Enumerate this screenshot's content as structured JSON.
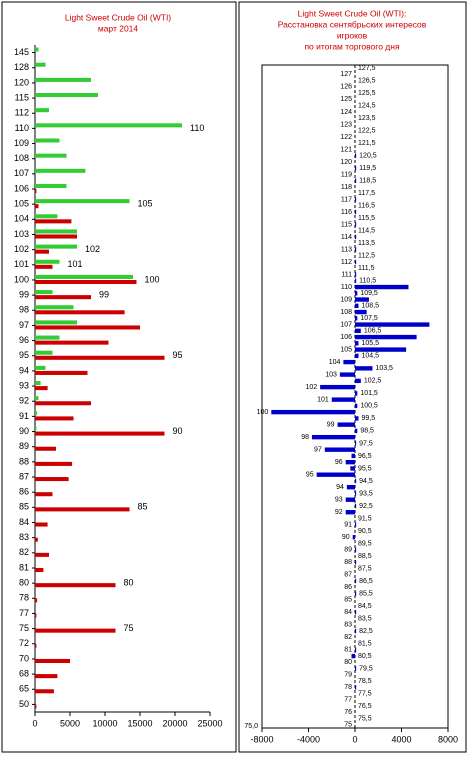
{
  "chart_data": [
    {
      "type": "hbar",
      "title": [
        "Light Sweet Crude Oil (WTI)",
        "март 2014"
      ],
      "categories": [
        145,
        128,
        120,
        115,
        112,
        110,
        109,
        108,
        107,
        106,
        105,
        104,
        103,
        102,
        101,
        100,
        99,
        98,
        97,
        96,
        95,
        94,
        93,
        92,
        91,
        90,
        89,
        88,
        87,
        86,
        85,
        84,
        83,
        82,
        81,
        80,
        78,
        77,
        75,
        72,
        70,
        68,
        65,
        50
      ],
      "series": [
        {
          "color": "#33cc33",
          "values": [
            500,
            1500,
            8000,
            9000,
            2000,
            21000,
            3500,
            4500,
            7200,
            4500,
            13500,
            3200,
            6000,
            6000,
            3500,
            14000,
            2500,
            5500,
            6000,
            3500,
            2500,
            1500,
            800,
            500,
            300,
            200,
            0,
            0,
            0,
            0,
            0,
            0,
            0,
            0,
            0,
            0,
            0,
            0,
            0,
            0,
            0,
            0,
            0,
            0
          ]
        },
        {
          "color": "#cc0000",
          "values": [
            0,
            0,
            0,
            0,
            0,
            0,
            0,
            0,
            0,
            200,
            500,
            5200,
            6000,
            2000,
            2500,
            14500,
            8000,
            12800,
            15000,
            10500,
            18500,
            7500,
            1800,
            8000,
            5500,
            18500,
            3000,
            5300,
            4800,
            2500,
            13500,
            1800,
            400,
            2000,
            1200,
            11500,
            300,
            200,
            11500,
            200,
            5000,
            3200,
            2700,
            200
          ]
        }
      ],
      "annotations": [
        "110",
        "105",
        "102",
        "101",
        "100",
        "99",
        "95",
        "90",
        "85",
        "80",
        "75"
      ],
      "xlim": [
        0,
        25000
      ],
      "xticks": [
        0,
        5000,
        10000,
        15000,
        20000,
        25000
      ]
    },
    {
      "type": "hbar",
      "title": [
        "Light Sweet Crude Oil (WTI):",
        "Расстановка  сентябрьских интересов",
        "игроков",
        "по итогам торгового  дня"
      ],
      "categories": [
        "127,5",
        "127",
        "126,5",
        "126",
        "125,5",
        "125",
        "124,5",
        "124",
        "123,5",
        "123",
        "122,5",
        "122",
        "121,5",
        "121",
        "120,5",
        "120",
        "119,5",
        "119",
        "118,5",
        "118",
        "117,5",
        "117",
        "116,5",
        "116",
        "115,5",
        "115",
        "114,5",
        "114",
        "113,5",
        "113",
        "112,5",
        "112",
        "111,5",
        "111",
        "110,5",
        "110",
        "109,5",
        "109",
        "108,5",
        "108",
        "107,5",
        "107",
        "106,5",
        "106",
        "105,5",
        "105",
        "104,5",
        "104",
        "103,5",
        "103",
        "102,5",
        "102",
        "101,5",
        "101",
        "100,5",
        "100",
        "99,5",
        "99",
        "98,5",
        "98",
        "97,5",
        "97",
        "96,5",
        "96",
        "95,5",
        "95",
        "94,5",
        "94",
        "93,5",
        "93",
        "92,5",
        "92",
        "91,5",
        "91",
        "90,5",
        "90",
        "89,5",
        "89",
        "88,5",
        "88",
        "87,5",
        "87",
        "86,5",
        "86",
        "85,5",
        "85",
        "84,5",
        "84",
        "83,5",
        "83",
        "82,5",
        "82",
        "81,5",
        "81",
        "80,5",
        "80",
        "79,5",
        "79",
        "78,5",
        "78",
        "77,5",
        "77",
        "76,5",
        "76",
        "75,5",
        "75"
      ],
      "color": "#0000cc",
      "values": [
        0,
        0,
        0,
        0,
        0,
        0,
        0,
        0,
        0,
        0,
        0,
        0,
        0,
        0,
        100,
        0,
        100,
        0,
        100,
        0,
        0,
        100,
        0,
        100,
        0,
        100,
        0,
        100,
        0,
        100,
        0,
        100,
        0,
        100,
        100,
        4600,
        200,
        1200,
        300,
        1000,
        200,
        6400,
        500,
        5300,
        300,
        4400,
        300,
        -1000,
        1500,
        -1300,
        500,
        -3000,
        200,
        -2000,
        200,
        -7200,
        300,
        -1500,
        200,
        -3700,
        100,
        -2600,
        -300,
        -800,
        -400,
        -3300,
        100,
        -700,
        100,
        -800,
        100,
        -800,
        0,
        100,
        0,
        -200,
        0,
        100,
        0,
        100,
        0,
        0,
        100,
        0,
        100,
        0,
        0,
        100,
        0,
        0,
        100,
        0,
        0,
        100,
        -300,
        0,
        100,
        0,
        0,
        100,
        0,
        0,
        0,
        0,
        0,
        0
      ],
      "corner_label": "75,0",
      "xlim": [
        -8000,
        8000
      ],
      "xticks": [
        -8000,
        -4000,
        0,
        4000,
        8000
      ]
    }
  ]
}
